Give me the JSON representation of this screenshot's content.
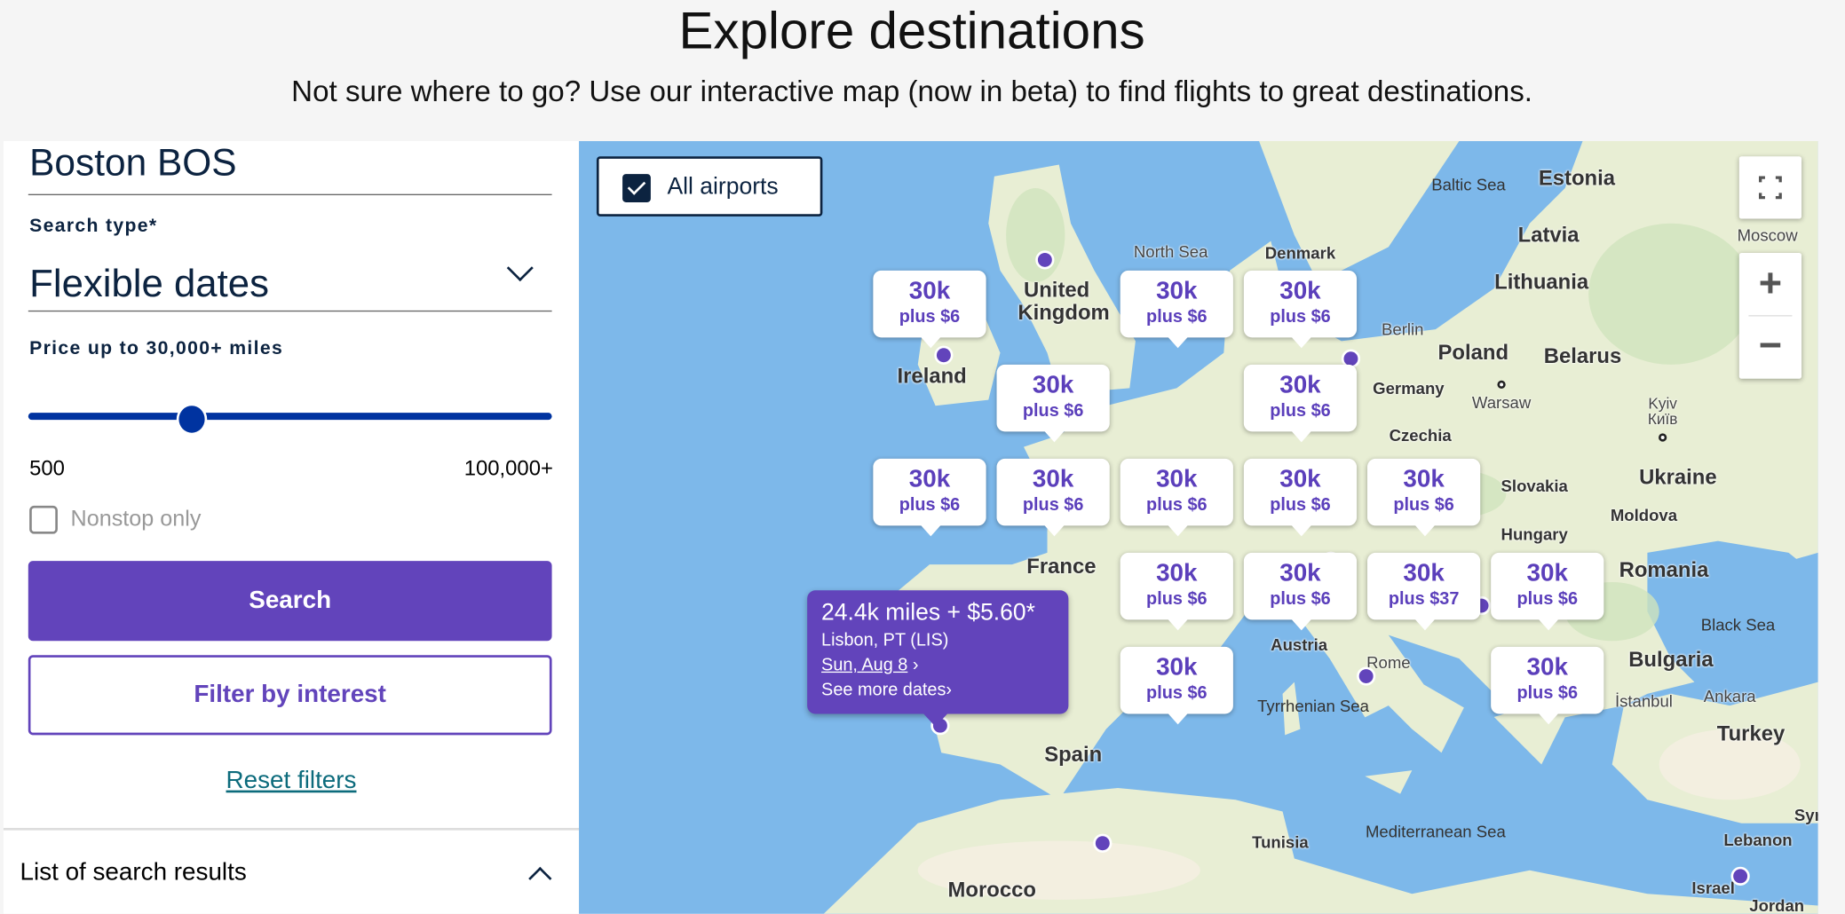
{
  "header": {
    "title": "Explore destinations",
    "subtitle": "Not sure where to go? Use our interactive map (now in beta) to find flights to great destinations."
  },
  "search_panel": {
    "origin": "Boston BOS",
    "search_type_label": "Search type*",
    "search_type_value": "Flexible dates",
    "price_label": "Price up to 30,000+ miles",
    "price_slider": {
      "min_label": "500",
      "max_label": "100,000+",
      "value_miles": 30000
    },
    "nonstop_label": "Nonstop only",
    "nonstop_checked": false,
    "search_button": "Search",
    "filter_button": "Filter by interest",
    "reset_link": "Reset filters",
    "results_header": "List of search results"
  },
  "map": {
    "all_airports_label": "All airports",
    "all_airports_checked": true,
    "controls": {
      "fullscreen": "fullscreen-icon",
      "zoom_in": "+",
      "zoom_out": "−"
    },
    "labels": [
      "Baltic Sea",
      "Estonia",
      "Latvia",
      "Lithuania",
      "Moscow",
      "Poland",
      "Warsaw",
      "Belarus",
      "Kyiv",
      "Київ",
      "Ukraine",
      "Slovakia",
      "Moldova",
      "Hungary",
      "Romania",
      "Black Sea",
      "Bulgaria",
      "İstanbul",
      "Ankara",
      "Turkey",
      "Syria",
      "Lebanon",
      "Israel",
      "Jordan",
      "Mediterranean Sea",
      "Tyrrhenian Sea",
      "Rome",
      "Tunisia",
      "Morocco",
      "Spain",
      "France",
      "Austria",
      "North Sea",
      "Denmark",
      "United",
      "Kingdom",
      "Ireland",
      "Czechia",
      "Berlin",
      "Germany"
    ],
    "markers": [
      {
        "miles": "30k",
        "fee": "plus $6"
      },
      {
        "miles": "30k",
        "fee": "plus $6"
      },
      {
        "miles": "30k",
        "fee": "plus $6"
      },
      {
        "miles": "30k",
        "fee": "plus $6"
      },
      {
        "miles": "30k",
        "fee": "plus $6"
      },
      {
        "miles": "30k",
        "fee": "plus $6"
      },
      {
        "miles": "30k",
        "fee": "plus $6"
      },
      {
        "miles": "30k",
        "fee": "plus $6"
      },
      {
        "miles": "30k",
        "fee": "plus $6"
      },
      {
        "miles": "30k",
        "fee": "plus $6"
      },
      {
        "miles": "30k",
        "fee": "plus $6"
      },
      {
        "miles": "30k",
        "fee": "plus $6"
      },
      {
        "miles": "30k",
        "fee": "plus $37"
      },
      {
        "miles": "30k",
        "fee": "plus $6"
      },
      {
        "miles": "30k",
        "fee": "plus $6"
      },
      {
        "miles": "30k",
        "fee": "plus $6"
      }
    ],
    "selected": {
      "price": "24.4k miles + $5.60*",
      "destination": "Lisbon, PT (LIS)",
      "date": "Sun, Aug 8",
      "more_dates": "See more dates"
    }
  },
  "colors": {
    "brand_purple": "#6244bb",
    "navy": "#0c2340",
    "slider_blue": "#0033a0",
    "link_teal": "#0c6b7c",
    "water": "#7db8ea",
    "land": "#e8eed4"
  }
}
